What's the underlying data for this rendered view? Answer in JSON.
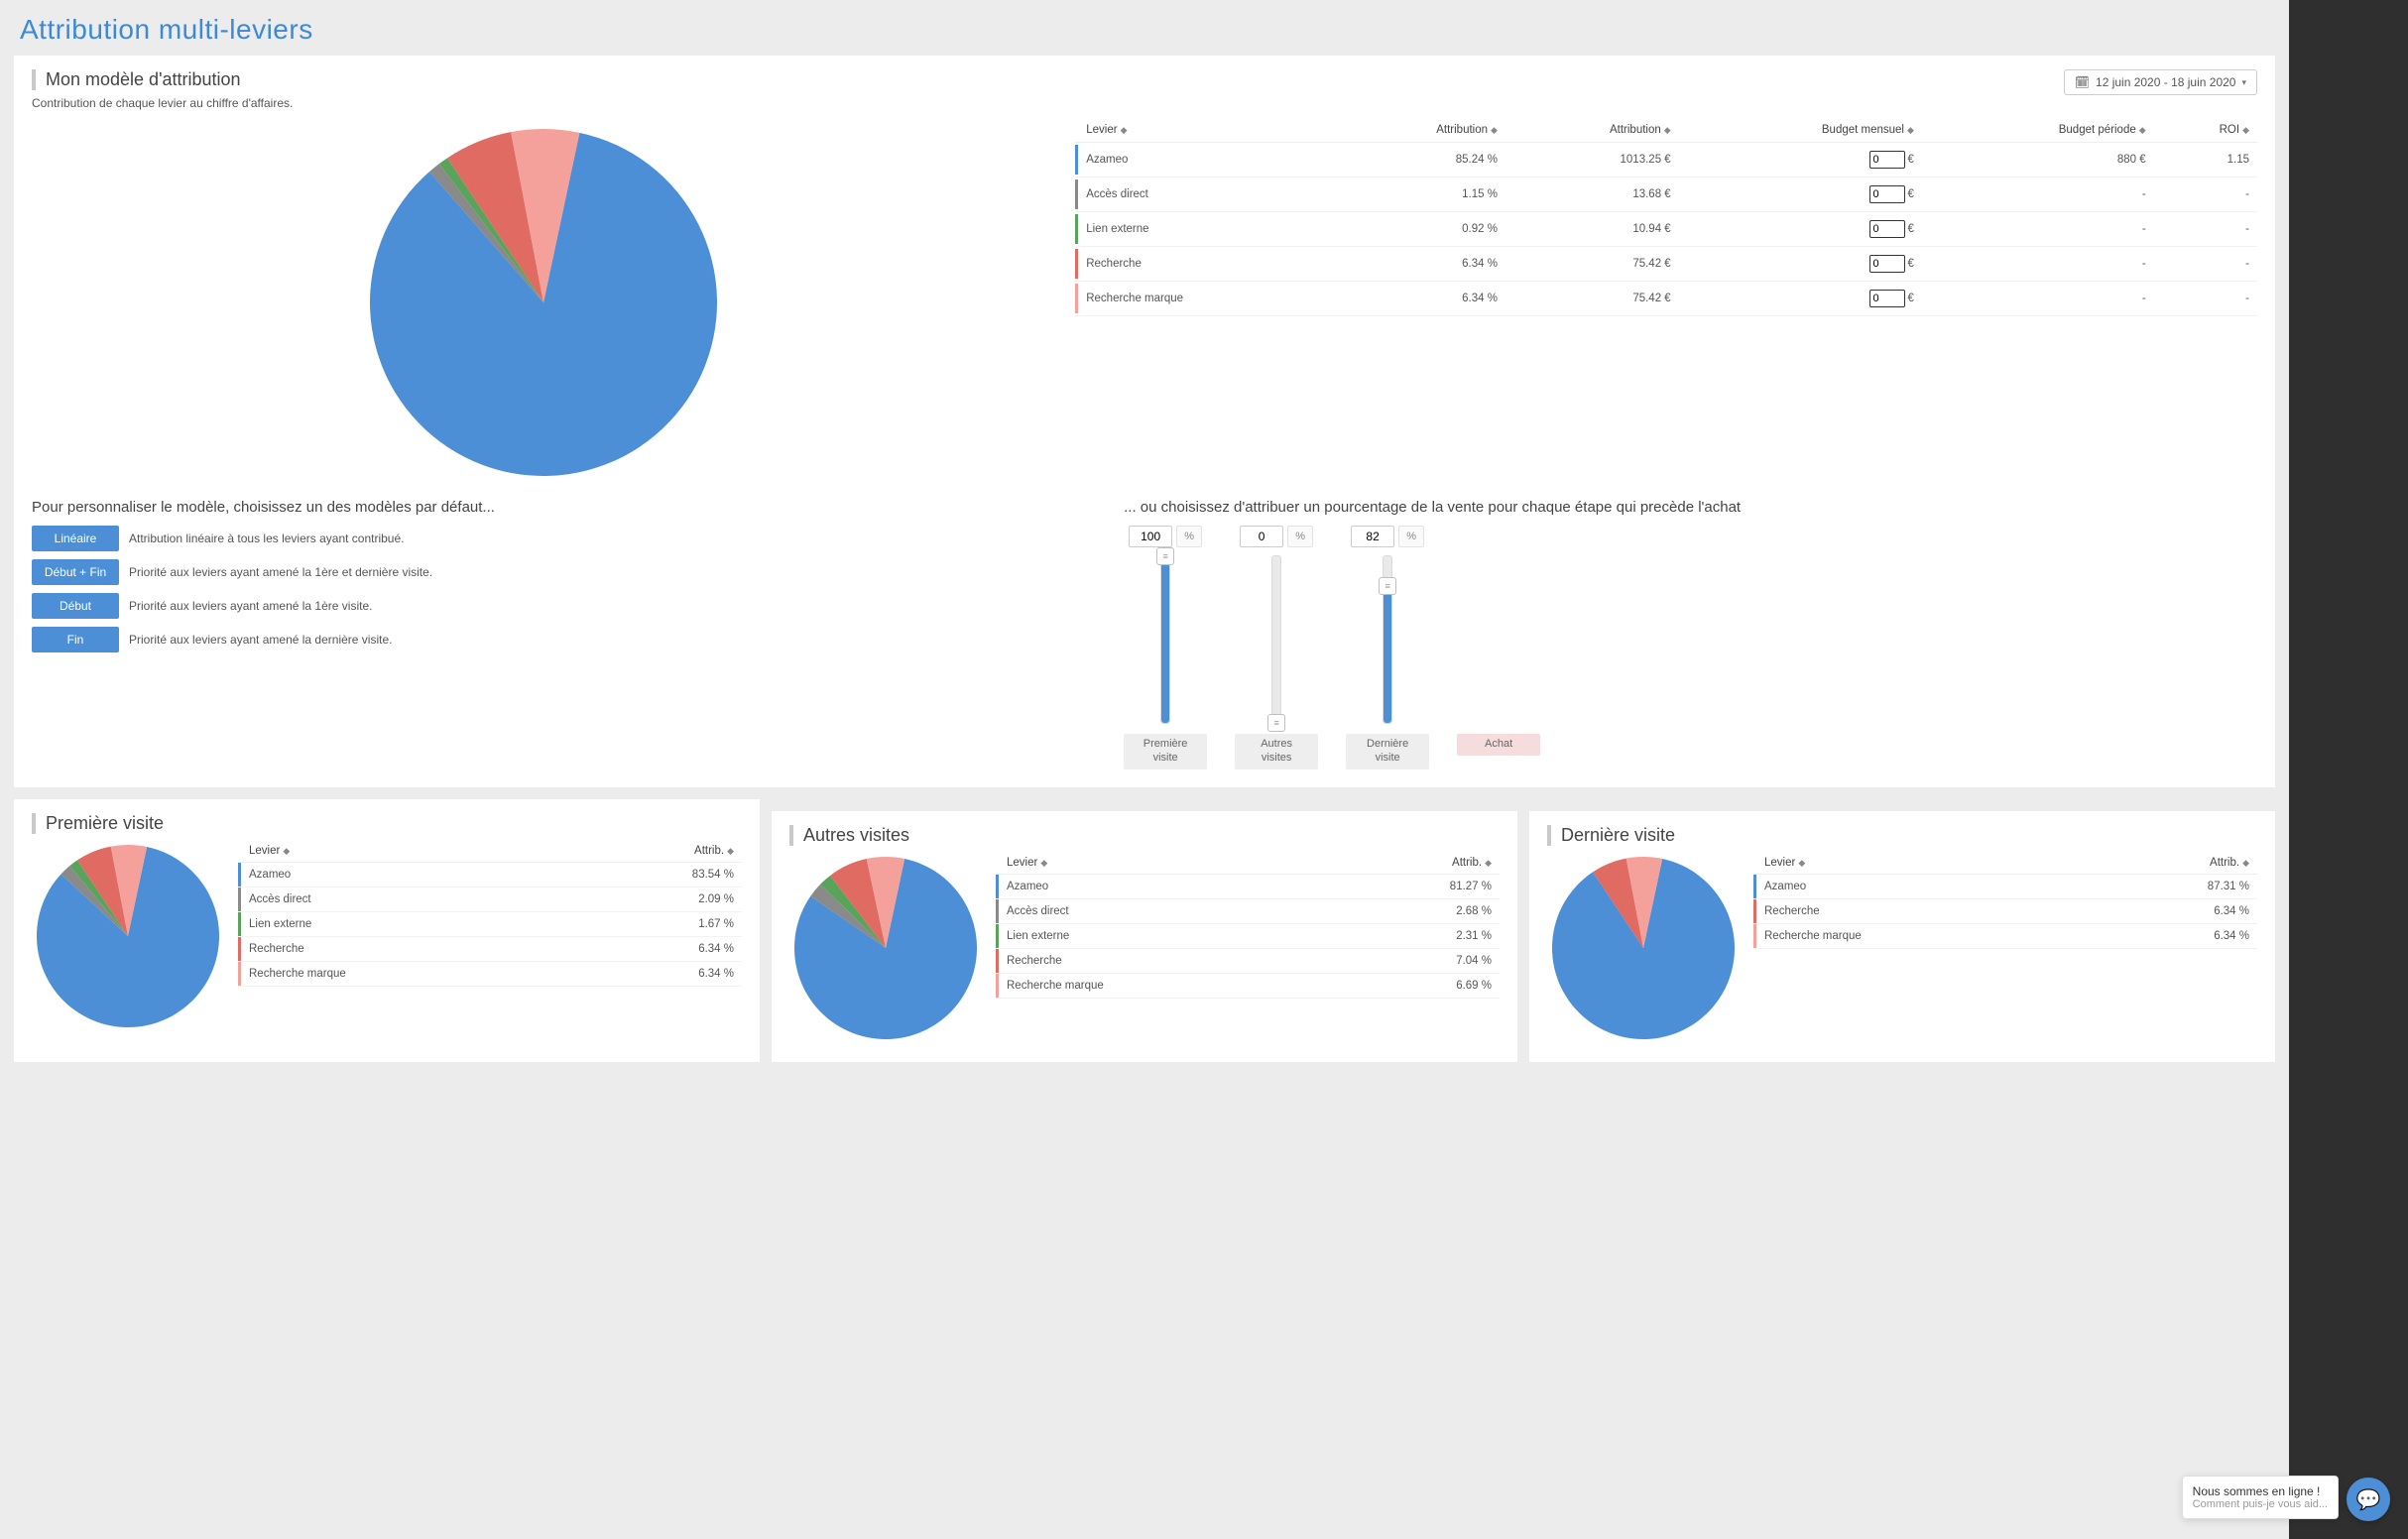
{
  "page": {
    "title": "Attribution multi-leviers",
    "date_range": "12 juin 2020 - 18 juin 2020"
  },
  "colors": {
    "blue": "#4c8fd6",
    "grey": "#8a8a8a",
    "green": "#5aa35a",
    "red": "#e06b63",
    "pink": "#f3a19a",
    "panel_border": "#c9c9c9",
    "bg_page": "#ececec",
    "bg_dark": "#2f2f2f"
  },
  "main": {
    "section_title": "Mon modèle d'attribution",
    "subtitle": "Contribution de chaque levier au chiffre d'affaires.",
    "pie": {
      "type": "pie",
      "radius": 175,
      "start_angle_deg": -78,
      "background_color": "#ffffff",
      "series": [
        {
          "label": "Azameo",
          "value": 85.24,
          "color": "#4c8fd6"
        },
        {
          "label": "Accès direct",
          "value": 1.15,
          "color": "#8a8a8a"
        },
        {
          "label": "Lien externe",
          "value": 0.92,
          "color": "#5aa35a"
        },
        {
          "label": "Recherche",
          "value": 6.34,
          "color": "#e06b63"
        },
        {
          "label": "Recherche marque",
          "value": 6.34,
          "color": "#f3a19a"
        }
      ]
    },
    "table": {
      "columns": {
        "levier": "Levier",
        "attrib_pct": "Attribution",
        "attrib_val": "Attribution",
        "budget_mensuel": "Budget mensuel",
        "budget_periode": "Budget période",
        "roi": "ROI"
      },
      "currency": "€",
      "rows": [
        {
          "color": "#4c8fd6",
          "levier": "Azameo",
          "attrib_pct": "85.24  %",
          "attrib_val": "1013.25  €",
          "budget_input": "0",
          "budget_periode": "880  €",
          "roi": "1.15"
        },
        {
          "color": "#8a8a8a",
          "levier": "Accès direct",
          "attrib_pct": "1.15  %",
          "attrib_val": "13.68  €",
          "budget_input": "0",
          "budget_periode": "-",
          "roi": "-"
        },
        {
          "color": "#5aa35a",
          "levier": "Lien externe",
          "attrib_pct": "0.92  %",
          "attrib_val": "10.94  €",
          "budget_input": "0",
          "budget_periode": "-",
          "roi": "-"
        },
        {
          "color": "#e06b63",
          "levier": "Recherche",
          "attrib_pct": "6.34  %",
          "attrib_val": "75.42  €",
          "budget_input": "0",
          "budget_periode": "-",
          "roi": "-"
        },
        {
          "color": "#f3a19a",
          "levier": "Recherche marque",
          "attrib_pct": "6.34  %",
          "attrib_val": "75.42  €",
          "budget_input": "0",
          "budget_periode": "-",
          "roi": "-"
        }
      ]
    },
    "custom_left": {
      "heading": "Pour personnaliser le modèle, choisissez un des modèles par défaut...",
      "models": [
        {
          "label": "Linéaire",
          "desc": "Attribution linéaire à tous les leviers ayant contribué."
        },
        {
          "label": "Début + Fin",
          "desc": "Priorité aux leviers ayant amené la 1ère et dernière visite."
        },
        {
          "label": "Début",
          "desc": "Priorité aux leviers ayant amené la 1ère visite."
        },
        {
          "label": "Fin",
          "desc": "Priorité aux leviers ayant amené la dernière visite."
        }
      ]
    },
    "custom_right": {
      "heading": "... ou choisissez d'attribuer un pourcentage de la vente pour chaque étape qui precède l'achat",
      "pct_symbol": "%",
      "slider_track_color": "#e9e9e9",
      "slider_fill_color": "#4c8fd6",
      "stages": [
        {
          "label": "Première visite",
          "value": 100
        },
        {
          "label": "Autres visites",
          "value": 0
        },
        {
          "label": "Dernière visite",
          "value": 82
        }
      ],
      "purchase_label": "Achat"
    }
  },
  "panels": [
    {
      "title": "Première visite",
      "pie": {
        "type": "pie",
        "radius": 92,
        "start_angle_deg": -78,
        "series": [
          {
            "label": "Azameo",
            "value": 83.54,
            "color": "#4c8fd6"
          },
          {
            "label": "Accès direct",
            "value": 2.09,
            "color": "#8a8a8a"
          },
          {
            "label": "Lien externe",
            "value": 1.67,
            "color": "#5aa35a"
          },
          {
            "label": "Recherche",
            "value": 6.34,
            "color": "#e06b63"
          },
          {
            "label": "Recherche marque",
            "value": 6.34,
            "color": "#f3a19a"
          }
        ]
      },
      "table": {
        "columns": {
          "levier": "Levier",
          "attrib": "Attrib."
        },
        "rows": [
          {
            "color": "#4c8fd6",
            "levier": "Azameo",
            "attrib": "83.54  %"
          },
          {
            "color": "#8a8a8a",
            "levier": "Accès direct",
            "attrib": "2.09  %"
          },
          {
            "color": "#5aa35a",
            "levier": "Lien externe",
            "attrib": "1.67  %"
          },
          {
            "color": "#e06b63",
            "levier": "Recherche",
            "attrib": "6.34  %"
          },
          {
            "color": "#f3a19a",
            "levier": "Recherche marque",
            "attrib": "6.34  %"
          }
        ]
      }
    },
    {
      "title": "Autres visites",
      "pie": {
        "type": "pie",
        "radius": 92,
        "start_angle_deg": -78,
        "series": [
          {
            "label": "Azameo",
            "value": 81.27,
            "color": "#4c8fd6"
          },
          {
            "label": "Accès direct",
            "value": 2.68,
            "color": "#8a8a8a"
          },
          {
            "label": "Lien externe",
            "value": 2.31,
            "color": "#5aa35a"
          },
          {
            "label": "Recherche",
            "value": 7.04,
            "color": "#e06b63"
          },
          {
            "label": "Recherche marque",
            "value": 6.69,
            "color": "#f3a19a"
          }
        ]
      },
      "table": {
        "columns": {
          "levier": "Levier",
          "attrib": "Attrib."
        },
        "rows": [
          {
            "color": "#4c8fd6",
            "levier": "Azameo",
            "attrib": "81.27  %"
          },
          {
            "color": "#8a8a8a",
            "levier": "Accès direct",
            "attrib": "2.68  %"
          },
          {
            "color": "#5aa35a",
            "levier": "Lien externe",
            "attrib": "2.31  %"
          },
          {
            "color": "#e06b63",
            "levier": "Recherche",
            "attrib": "7.04  %"
          },
          {
            "color": "#f3a19a",
            "levier": "Recherche marque",
            "attrib": "6.69  %"
          }
        ]
      }
    },
    {
      "title": "Dernière visite",
      "pie": {
        "type": "pie",
        "radius": 92,
        "start_angle_deg": -78,
        "series": [
          {
            "label": "Azameo",
            "value": 87.31,
            "color": "#4c8fd6"
          },
          {
            "label": "Recherche",
            "value": 6.34,
            "color": "#e06b63"
          },
          {
            "label": "Recherche marque",
            "value": 6.34,
            "color": "#f3a19a"
          }
        ]
      },
      "table": {
        "columns": {
          "levier": "Levier",
          "attrib": "Attrib."
        },
        "rows": [
          {
            "color": "#4c8fd6",
            "levier": "Azameo",
            "attrib": "87.31  %"
          },
          {
            "color": "#e06b63",
            "levier": "Recherche",
            "attrib": "6.34  %"
          },
          {
            "color": "#f3a19a",
            "levier": "Recherche marque",
            "attrib": "6.34  %"
          }
        ]
      }
    }
  ],
  "chat": {
    "line1": "Nous sommes en ligne !",
    "line2": "Comment puis-je vous aid..."
  }
}
